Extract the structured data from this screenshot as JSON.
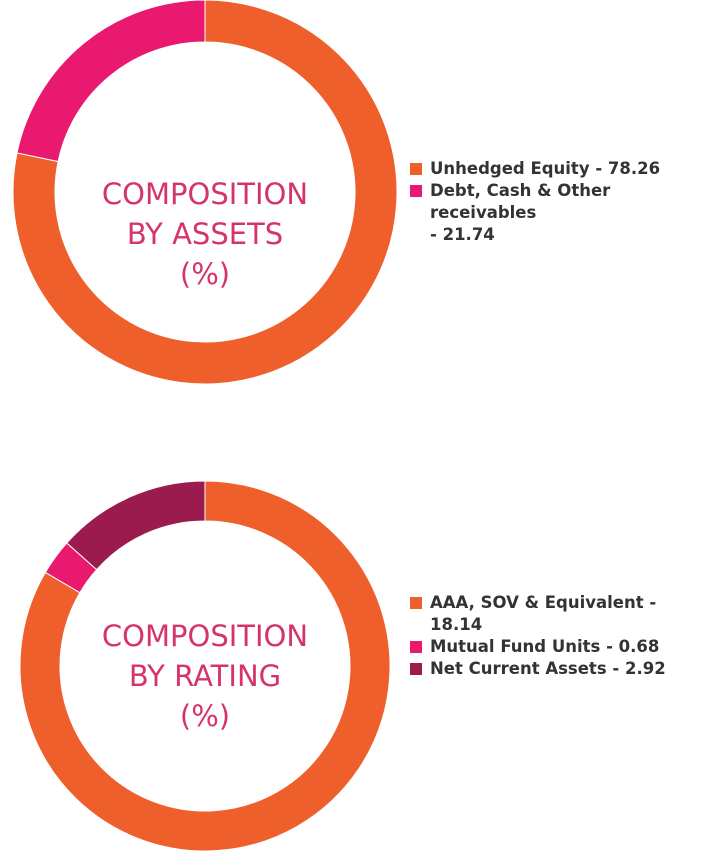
{
  "chart_data": [
    {
      "type": "pie",
      "style": "donut",
      "title_lines": [
        "COMPOSITION",
        "BY ASSETS",
        "(%)"
      ],
      "slices": [
        {
          "label_line1": "Unhedged Equity - 78.26",
          "label_line2": "",
          "value": 78.26,
          "color": "#ef5f2c"
        },
        {
          "label_line1": "Debt, Cash & Other receivables",
          "label_line2": "- 21.74",
          "value": 21.74,
          "color": "#e8196e"
        }
      ],
      "legend_position": "right"
    },
    {
      "type": "pie",
      "style": "donut",
      "title_lines": [
        "COMPOSITION",
        "BY RATING",
        "(%)"
      ],
      "slices": [
        {
          "label_line1": "AAA, SOV & Equivalent -",
          "label_line2": "18.14",
          "value": 18.14,
          "color": "#ef5f2c"
        },
        {
          "label_line1": "Mutual Fund Units - 0.68",
          "label_line2": "",
          "value": 0.68,
          "color": "#e8196e"
        },
        {
          "label_line1": "Net Current Assets - 2.92",
          "label_line2": "",
          "value": 2.92,
          "color": "#9b1b4f"
        }
      ],
      "legend_position": "right"
    }
  ]
}
